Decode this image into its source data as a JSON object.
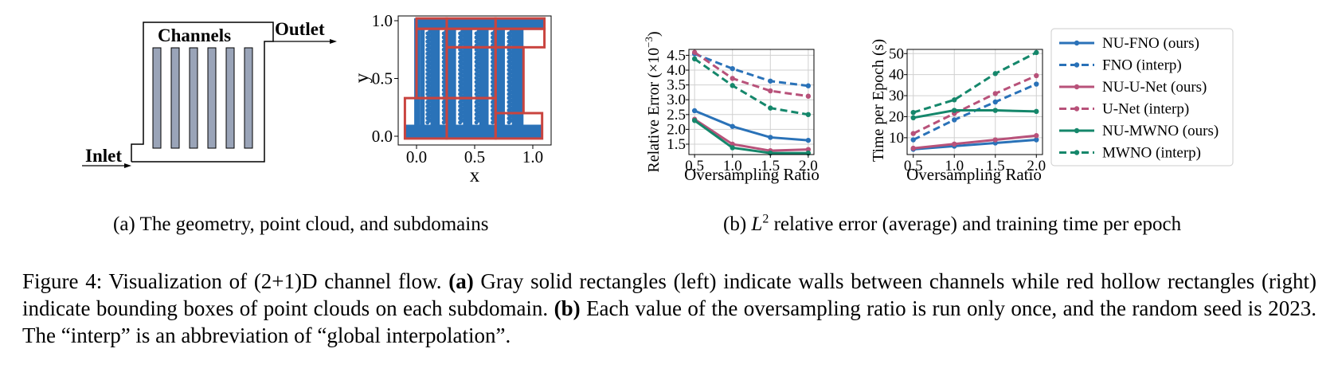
{
  "geometry": {
    "channels_label": "Channels",
    "outlet_label": "Outlet",
    "inlet_label": "Inlet"
  },
  "pointcloud": {
    "xlabel": "x",
    "ylabel": "y",
    "xticks": [
      "0.0",
      "0.5",
      "1.0"
    ],
    "yticks": [
      "0.0",
      "0.5",
      "1.0"
    ],
    "point_color": "#2a72b8",
    "box_color": "#c9443f"
  },
  "chart_data": [
    {
      "type": "line",
      "xlabel": "Oversampling Ratio",
      "ylabel": "Relative Error (×10",
      "ylabel_exp": "−3",
      "ylabel_close": ")",
      "x": [
        0.5,
        1.0,
        1.5,
        2.0
      ],
      "xticks": [
        "0.5",
        "1.0",
        "1.5",
        "2.0"
      ],
      "yticks": [
        "1.5",
        "2.0",
        "2.5",
        "3.0",
        "3.5",
        "4.0",
        "4.5"
      ],
      "ylim": [
        1.15,
        4.7
      ],
      "grid": true,
      "series": [
        {
          "name": "NU-FNO (ours)",
          "color": "#2a72b8",
          "dash": false,
          "values": [
            2.63,
            2.1,
            1.73,
            1.63
          ]
        },
        {
          "name": "FNO (interp)",
          "color": "#2a72b8",
          "dash": true,
          "values": [
            4.55,
            4.05,
            3.63,
            3.47
          ]
        },
        {
          "name": "NU-U-Net (ours)",
          "color": "#b8527a",
          "dash": false,
          "values": [
            2.34,
            1.5,
            1.28,
            1.32
          ]
        },
        {
          "name": "U-Net (interp)",
          "color": "#b8527a",
          "dash": true,
          "values": [
            4.6,
            3.72,
            3.3,
            3.12
          ]
        },
        {
          "name": "NU-MWNO (ours)",
          "color": "#15876b",
          "dash": false,
          "values": [
            2.3,
            1.38,
            1.2,
            1.2
          ]
        },
        {
          "name": "MWNO (interp)",
          "color": "#15876b",
          "dash": true,
          "values": [
            4.38,
            3.48,
            2.72,
            2.5
          ]
        }
      ]
    },
    {
      "type": "line",
      "xlabel": "Oversampling Ratio",
      "ylabel": "Time per Epoch (s)",
      "x": [
        0.5,
        1.0,
        1.5,
        2.0
      ],
      "xticks": [
        "0.5",
        "1.0",
        "1.5",
        "2.0"
      ],
      "yticks": [
        "10",
        "20",
        "30",
        "40",
        "50"
      ],
      "ylim": [
        2,
        52
      ],
      "grid": true,
      "legend": "right",
      "series": [
        {
          "name": "NU-FNO (ours)",
          "color": "#2a72b8",
          "dash": false,
          "values": [
            4.5,
            6.0,
            7.5,
            9.0
          ]
        },
        {
          "name": "FNO (interp)",
          "color": "#2a72b8",
          "dash": true,
          "values": [
            9.0,
            18.5,
            27.0,
            35.5
          ]
        },
        {
          "name": "NU-U-Net (ours)",
          "color": "#b8527a",
          "dash": false,
          "values": [
            5.0,
            7.0,
            9.0,
            11.0
          ]
        },
        {
          "name": "U-Net (interp)",
          "color": "#b8527a",
          "dash": true,
          "values": [
            12.0,
            21.5,
            31.0,
            39.5
          ]
        },
        {
          "name": "NU-MWNO (ours)",
          "color": "#15876b",
          "dash": false,
          "values": [
            19.5,
            23.0,
            23.0,
            22.5
          ]
        },
        {
          "name": "MWNO (interp)",
          "color": "#15876b",
          "dash": true,
          "values": [
            22.0,
            28.0,
            40.5,
            50.5
          ]
        }
      ]
    }
  ],
  "captions": {
    "a": "(a) The geometry, point cloud, and subdomains",
    "b_pre": "(b) ",
    "b_L": "L",
    "b_exp": "2",
    "b_post": " relative error (average) and training time per epoch",
    "fig_label": "Figure 4: Visualization of (2+1)D channel flow. ",
    "bold_a": "(a)",
    "text_a": " Gray solid rectangles (left) indicate walls between channels while red hollow rectangles (right) indicate bounding boxes of point clouds on each subdomain. ",
    "bold_b": "(b)",
    "text_b": " Each value of the oversampling ratio is run only once, and the random seed is 2023. The “interp” is an abbreviation of “global interpolation”."
  }
}
